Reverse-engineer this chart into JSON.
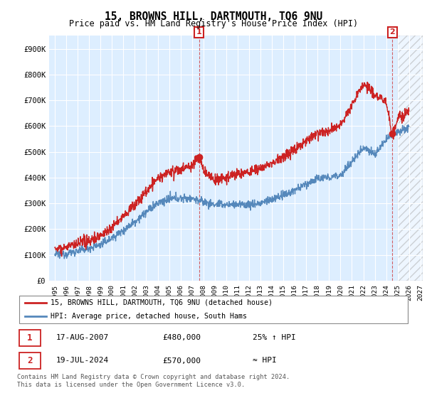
{
  "title": "15, BROWNS HILL, DARTMOUTH, TQ6 9NU",
  "subtitle": "Price paid vs. HM Land Registry's House Price Index (HPI)",
  "ylim": [
    0,
    950000
  ],
  "yticks": [
    0,
    100000,
    200000,
    300000,
    400000,
    500000,
    600000,
    700000,
    800000,
    900000
  ],
  "ytick_labels": [
    "£0",
    "£100K",
    "£200K",
    "£300K",
    "£400K",
    "£500K",
    "£600K",
    "£700K",
    "£800K",
    "£900K"
  ],
  "red_color": "#cc2222",
  "blue_color": "#5588bb",
  "chart_bg_color": "#ddeeff",
  "annotation_box_color": "#cc2222",
  "background_color": "#ffffff",
  "grid_color": "#ffffff",
  "legend_label_red": "15, BROWNS HILL, DARTMOUTH, TQ6 9NU (detached house)",
  "legend_label_blue": "HPI: Average price, detached house, South Hams",
  "sale1_date": "17-AUG-2007",
  "sale1_price": "£480,000",
  "sale1_note": "25% ↑ HPI",
  "sale2_date": "19-JUL-2024",
  "sale2_price": "£570,000",
  "sale2_note": "≈ HPI",
  "footnote": "Contains HM Land Registry data © Crown copyright and database right 2024.\nThis data is licensed under the Open Government Licence v3.0.",
  "xlim_start": 1994.5,
  "xlim_end": 2027.2,
  "sale1_x": 2007.62,
  "sale1_y": 480000,
  "sale2_x": 2024.54,
  "sale2_y": 570000,
  "hatch_start": 2025.0,
  "xtick_years": [
    1995,
    1996,
    1997,
    1998,
    1999,
    2000,
    2001,
    2002,
    2003,
    2004,
    2005,
    2006,
    2007,
    2008,
    2009,
    2010,
    2011,
    2012,
    2013,
    2014,
    2015,
    2016,
    2017,
    2018,
    2019,
    2020,
    2021,
    2022,
    2023,
    2024,
    2025,
    2026,
    2027
  ]
}
